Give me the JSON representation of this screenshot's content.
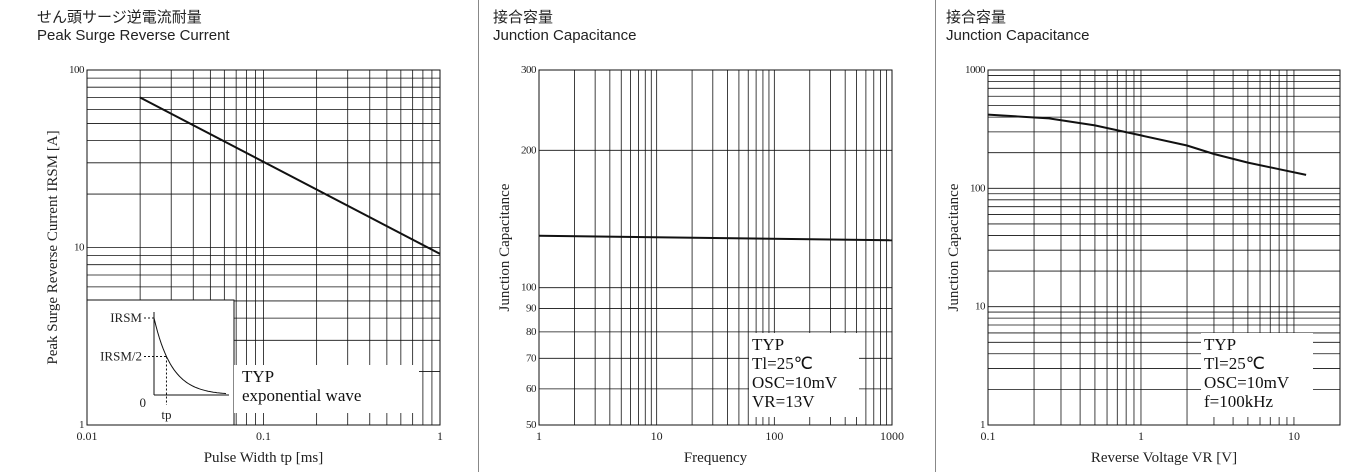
{
  "panels": [
    {
      "title_jp": "せん頭サージ逆電流耐量",
      "title_en": "Peak Surge Reverse Current"
    },
    {
      "title_jp": "接合容量",
      "title_en": "Junction Capacitance"
    },
    {
      "title_jp": "接合容量",
      "title_en": "Junction Capacitance"
    }
  ],
  "chart_data": [
    {
      "type": "line",
      "xlabel": "Pulse Width tp [ms]",
      "ylabel": "Peak Surge Reverse Current IRSM [A]",
      "x_scale": "log",
      "y_scale": "log",
      "xlim": [
        0.01,
        1
      ],
      "ylim": [
        1,
        100
      ],
      "xticks": [
        "0.01",
        "0.1",
        "1"
      ],
      "yticks": [
        "1",
        "10",
        "100"
      ],
      "grid": true,
      "series": [
        {
          "x": [
            0.02,
            1
          ],
          "y": [
            70,
            9.2
          ]
        }
      ],
      "annotation": [
        "TYP",
        "exponential wave"
      ],
      "inset_labels": {
        "irsm": "IRSM",
        "irsm_half": "IRSM/2",
        "zero": "0",
        "tp": "tp"
      }
    },
    {
      "type": "line",
      "xlabel": "Frequency",
      "ylabel": "Junction Capacitance",
      "x_scale": "log",
      "y_scale": "log",
      "xlim": [
        1,
        1000
      ],
      "ylim": [
        50,
        300
      ],
      "xticks": [
        "1",
        "10",
        "100",
        "1000"
      ],
      "yticks": [
        "50",
        "60",
        "70",
        "80",
        "90",
        "100",
        "200",
        "300"
      ],
      "grid": true,
      "series": [
        {
          "x": [
            1,
            1000
          ],
          "y": [
            130,
            127
          ]
        }
      ],
      "annotation": [
        "TYP",
        "Tl=25℃",
        "OSC=10mV",
        "VR=13V"
      ]
    },
    {
      "type": "line",
      "xlabel": "Reverse Voltage VR [V]",
      "ylabel": "Junction Capacitance",
      "x_scale": "log",
      "y_scale": "log",
      "xlim": [
        0.1,
        20
      ],
      "ylim": [
        1,
        1000
      ],
      "xticks": [
        "0.1",
        "1",
        "10"
      ],
      "yticks": [
        "1",
        "10",
        "100",
        "1000"
      ],
      "grid": true,
      "series": [
        {
          "x": [
            0.1,
            0.25,
            0.5,
            1,
            2,
            3,
            5,
            8,
            12
          ],
          "y": [
            420,
            390,
            340,
            280,
            230,
            195,
            165,
            145,
            130
          ]
        }
      ],
      "annotation": [
        "TYP",
        "Tl=25℃",
        "OSC=10mV",
        "f=100kHz"
      ]
    }
  ]
}
